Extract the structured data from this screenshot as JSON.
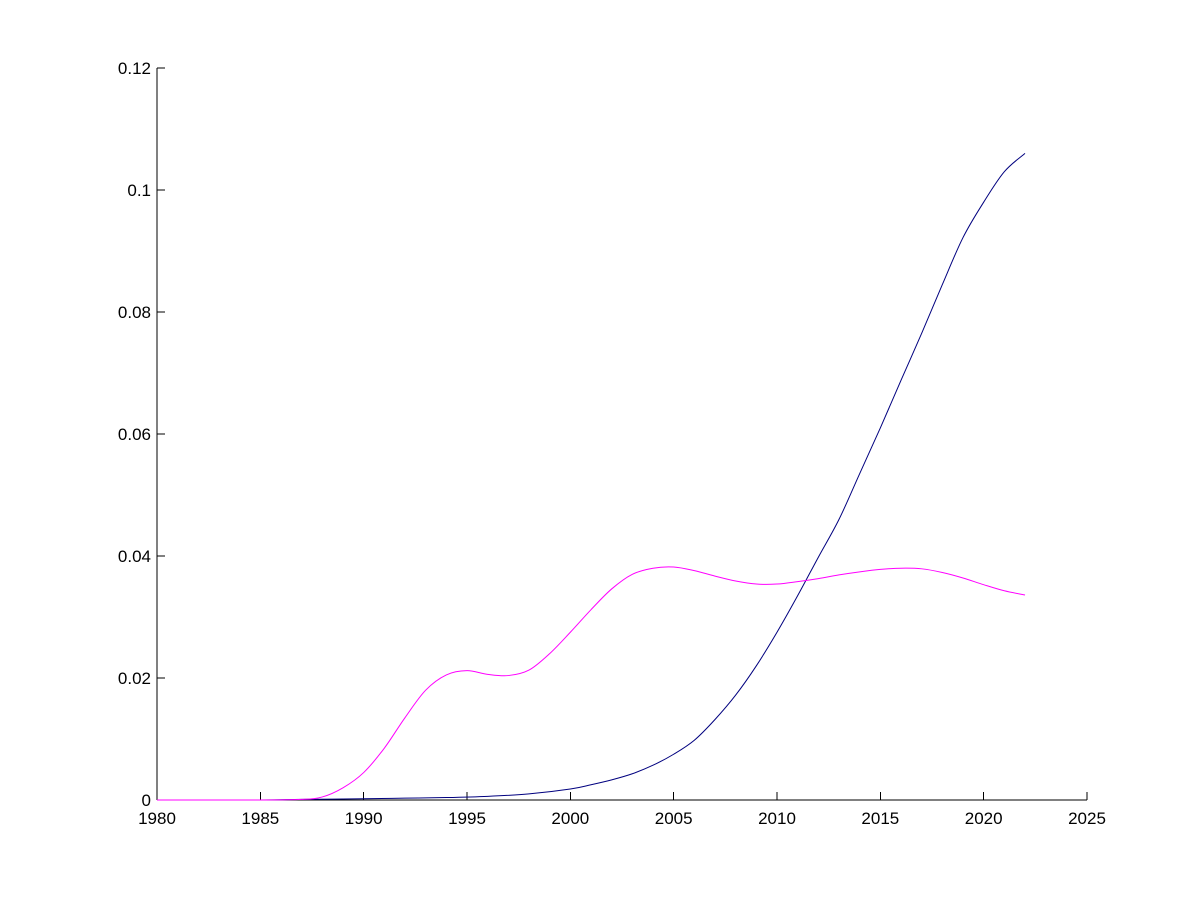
{
  "chart_data": {
    "type": "line",
    "title": "",
    "xlabel": "",
    "ylabel": "",
    "xlim": [
      1980,
      2025
    ],
    "ylim": [
      0,
      0.12
    ],
    "xticks": [
      1980,
      1985,
      1990,
      1995,
      2000,
      2005,
      2010,
      2015,
      2020,
      2025
    ],
    "yticks": [
      0,
      0.02,
      0.04,
      0.06,
      0.08,
      0.1,
      0.12
    ],
    "xtick_labels": [
      "1980",
      "1985",
      "1990",
      "1995",
      "2000",
      "2005",
      "2010",
      "2015",
      "2020",
      "2025"
    ],
    "ytick_labels": [
      "0",
      "0.02",
      "0.04",
      "0.06",
      "0.08",
      "0.1",
      "0.12"
    ],
    "grid": false,
    "legend": "none",
    "series": [
      {
        "color": "#00007f",
        "x": [
          1980,
          1985,
          1987,
          1990,
          1992,
          1994,
          1996,
          1998,
          2000,
          2001,
          2002,
          2003,
          2004,
          2005,
          2006,
          2007,
          2008,
          2009,
          2010,
          2011,
          2012,
          2013,
          2014,
          2015,
          2016,
          2017,
          2018,
          2019,
          2020,
          2021,
          2022
        ],
        "y": [
          0,
          0,
          0.0001,
          0.0002,
          0.0003,
          0.0004,
          0.0006,
          0.001,
          0.0018,
          0.0025,
          0.0033,
          0.0043,
          0.0057,
          0.0075,
          0.0098,
          0.0132,
          0.0172,
          0.022,
          0.0275,
          0.0335,
          0.0398,
          0.046,
          0.0535,
          0.061,
          0.0688,
          0.0765,
          0.0845,
          0.0922,
          0.098,
          0.103,
          0.106
        ]
      },
      {
        "color": "#ff00ff",
        "x": [
          1980,
          1985,
          1987,
          1988,
          1989,
          1990,
          1991,
          1992,
          1993,
          1994,
          1995,
          1996,
          1997,
          1998,
          1999,
          2000,
          2001,
          2002,
          2003,
          2004,
          2005,
          2006,
          2007,
          2008,
          2009,
          2010,
          2011,
          2012,
          2013,
          2014,
          2015,
          2016,
          2017,
          2018,
          2019,
          2020,
          2021,
          2022
        ],
        "y": [
          0,
          0,
          0.0001,
          0.0005,
          0.002,
          0.0045,
          0.0085,
          0.0135,
          0.018,
          0.0205,
          0.0212,
          0.0206,
          0.0204,
          0.0213,
          0.024,
          0.0275,
          0.0312,
          0.0346,
          0.037,
          0.038,
          0.0382,
          0.0376,
          0.0367,
          0.0359,
          0.0354,
          0.0354,
          0.0358,
          0.0363,
          0.0369,
          0.0374,
          0.0378,
          0.038,
          0.0379,
          0.0373,
          0.0364,
          0.0353,
          0.0343,
          0.0336
        ]
      }
    ]
  }
}
